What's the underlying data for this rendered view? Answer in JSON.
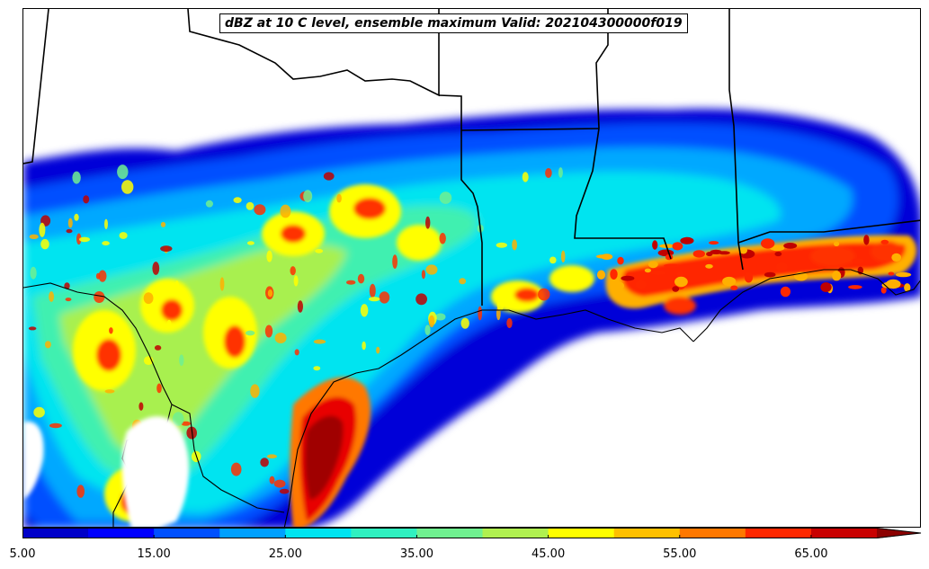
{
  "title": "dBZ at 10 C level, ensemble maximum Valid: 202104300000f019",
  "colorbar": {
    "min": 5,
    "max": 70,
    "step": 5,
    "extend": "max",
    "ticks": [
      "5.00",
      "15.00",
      "25.00",
      "35.00",
      "45.00",
      "55.00",
      "65.00"
    ],
    "tick_values": [
      5,
      15,
      25,
      35,
      45,
      55,
      65
    ],
    "colors": [
      "#0000c8",
      "#0000ff",
      "#0050ff",
      "#00a0ff",
      "#00e4f0",
      "#30f0c0",
      "#70f090",
      "#b0f050",
      "#ffff00",
      "#ffc000",
      "#ff7800",
      "#ff2800",
      "#c80000",
      "#8c0000"
    ]
  }
}
